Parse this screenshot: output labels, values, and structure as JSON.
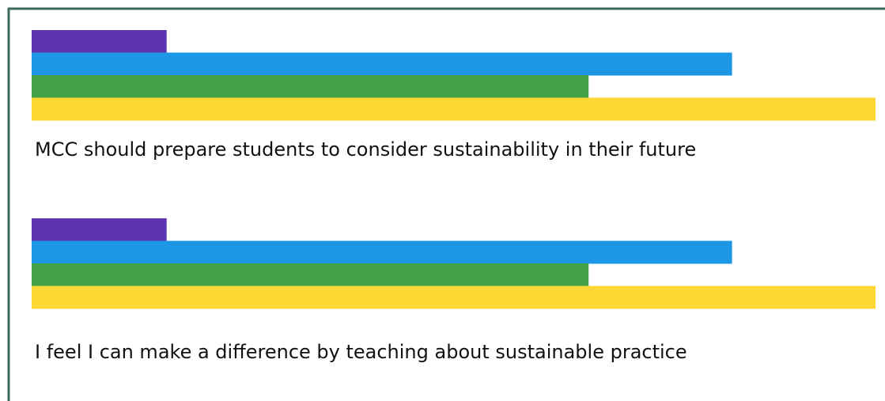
{
  "chart_data": [
    {
      "type": "bar",
      "orientation": "horizontal",
      "title": "MCC should prepare students to consider sustainability in their future",
      "values": [
        16,
        83,
        66,
        100
      ],
      "colors": [
        "#5e35b1",
        "#1e96e6",
        "#43a047",
        "#fdd835"
      ]
    },
    {
      "type": "bar",
      "orientation": "horizontal",
      "title": "I feel I can make a difference by teaching about sustainable practice",
      "values": [
        16,
        83,
        66,
        100
      ],
      "colors": [
        "#5e35b1",
        "#1e96e6",
        "#43a047",
        "#fdd835"
      ]
    }
  ]
}
